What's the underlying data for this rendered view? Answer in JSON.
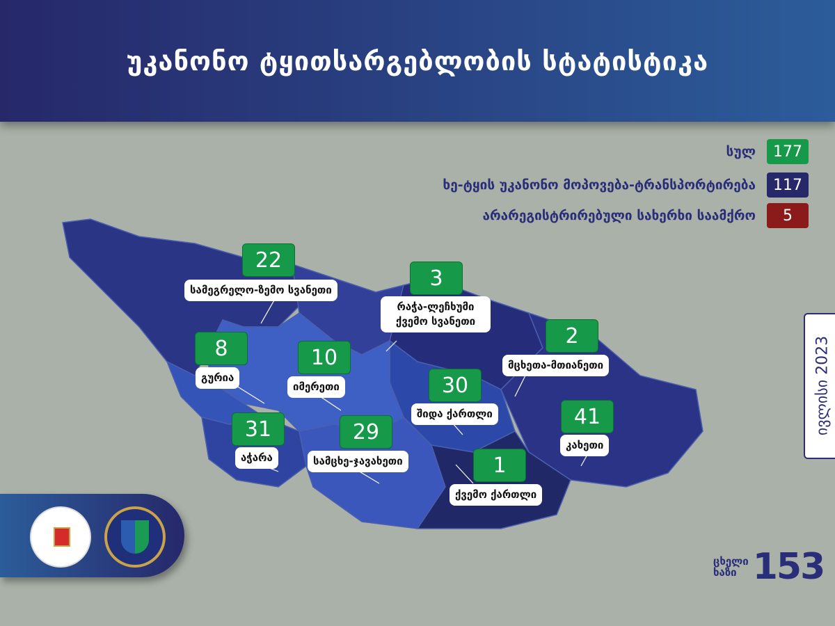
{
  "title": "უკანონო ტყითსარგებლობის სტატისტიკა",
  "legend": [
    {
      "label": "სულ",
      "value": "177",
      "color": "#169a4a"
    },
    {
      "label": "ხე-ტყის უკანონო  მოპოვება-ტრანსპორტირება",
      "value": "117",
      "color": "#26286a"
    },
    {
      "label": "არარეგისტრირებული სახერხი საამქრო",
      "value": "5",
      "color": "#8b1a1a"
    }
  ],
  "regions": [
    {
      "name": "სამეგრელო-ზემო სვანეთი",
      "value": "22"
    },
    {
      "name": "რაჭა-ლეჩხუმი ქვემო სვანეთი",
      "value": "3"
    },
    {
      "name": "მცხეთა-მთიანეთი",
      "value": "2"
    },
    {
      "name": "გურია",
      "value": "8"
    },
    {
      "name": "იმერეთი",
      "value": "10"
    },
    {
      "name": "შიდა ქართლი",
      "value": "30"
    },
    {
      "name": "კახეთი",
      "value": "41"
    },
    {
      "name": "აჭარა",
      "value": "31"
    },
    {
      "name": "სამცხე-ჯავახეთი",
      "value": "29"
    },
    {
      "name": "ქვემო ქართლი",
      "value": "1"
    }
  ],
  "date": "ივლისი 2023",
  "hotline": {
    "label1": "ცხელი",
    "label2": "ხაზი",
    "number": "153"
  },
  "colors": {
    "header": "#26286a",
    "accent_green": "#169a4a",
    "background": "#a9b1a8"
  }
}
